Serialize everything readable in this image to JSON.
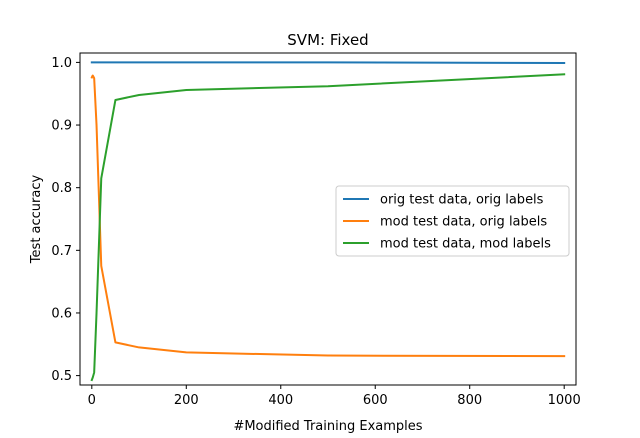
{
  "chart_data": {
    "type": "line",
    "title": "SVM: Fixed",
    "xlabel": "#Modified Training Examples",
    "ylabel": "Test accuracy",
    "xlim": [
      -25,
      1025
    ],
    "ylim": [
      0.485,
      1.015
    ],
    "xticks": [
      0,
      200,
      400,
      600,
      800,
      1000
    ],
    "yticks": [
      0.5,
      0.6,
      0.7,
      0.8,
      0.9,
      1.0
    ],
    "xtick_labels": [
      "0",
      "200",
      "400",
      "600",
      "800",
      "1000"
    ],
    "ytick_labels": [
      "0.5",
      "0.6",
      "0.7",
      "0.8",
      "0.9",
      "1.0"
    ],
    "grid": false,
    "legend_position": "center-right",
    "series": [
      {
        "name": "orig test data, orig labels",
        "color": "#1f77b4",
        "x": [
          0,
          1,
          2,
          5,
          10,
          20,
          50,
          100,
          200,
          500,
          1000
        ],
        "y": [
          1.0,
          1.0,
          1.0,
          1.0,
          1.0,
          1.0,
          1.0,
          1.0,
          1.0,
          1.0,
          0.999
        ]
      },
      {
        "name": "mod test data, orig labels",
        "color": "#ff7f0e",
        "x": [
          0,
          1,
          2,
          5,
          10,
          20,
          50,
          100,
          200,
          500,
          1000
        ],
        "y": [
          0.976,
          0.978,
          0.979,
          0.975,
          0.9,
          0.675,
          0.553,
          0.545,
          0.537,
          0.532,
          0.531
        ]
      },
      {
        "name": "mod test data, mod labels",
        "color": "#2ca02c",
        "x": [
          0,
          1,
          2,
          5,
          10,
          20,
          50,
          100,
          200,
          500,
          1000
        ],
        "y": [
          0.493,
          0.495,
          0.497,
          0.505,
          0.6,
          0.815,
          0.94,
          0.948,
          0.956,
          0.962,
          0.981
        ]
      }
    ]
  }
}
